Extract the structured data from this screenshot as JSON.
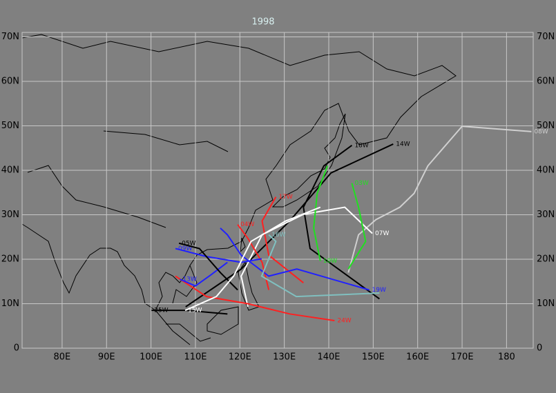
{
  "chart_data": {
    "type": "map",
    "title": "1998",
    "xlim": [
      71,
      186
    ],
    "ylim": [
      0,
      71
    ],
    "grid": true,
    "xticks": [
      {
        "value": 80,
        "label": "80E"
      },
      {
        "value": 90,
        "label": "90E"
      },
      {
        "value": 100,
        "label": "100E"
      },
      {
        "value": 110,
        "label": "110E"
      },
      {
        "value": 120,
        "label": "120E"
      },
      {
        "value": 130,
        "label": "130E"
      },
      {
        "value": 140,
        "label": "140E"
      },
      {
        "value": 150,
        "label": "150E"
      },
      {
        "value": 160,
        "label": "160E"
      },
      {
        "value": 170,
        "label": "170E"
      },
      180
    ],
    "yticks": [
      0,
      {
        "value": 10,
        "label": "10N"
      },
      {
        "value": 20,
        "label": "20N"
      },
      {
        "value": 30,
        "label": "30N"
      },
      {
        "value": 40,
        "label": "40N"
      },
      {
        "value": 50,
        "label": "50N"
      },
      {
        "value": 60,
        "label": "60N"
      },
      {
        "value": 70,
        "label": "70N"
      }
    ],
    "series": [
      {
        "name": "08W",
        "color": "#d0d0d0",
        "x": [
          144.4,
          146.7,
          150.6,
          156.0,
          159.2,
          162.3,
          170.0,
          185.6
        ],
        "values": [
          17.0,
          25.5,
          28.9,
          31.7,
          34.8,
          41.0,
          49.9,
          48.7
        ]
      },
      {
        "name": "18W",
        "color": "#000000",
        "x": [
          151.4,
          135.8,
          134.3,
          138.9,
          145.2
        ],
        "values": [
          11.1,
          22.4,
          31.7,
          41.0,
          45.6
        ]
      },
      {
        "name": "14W",
        "color": "#000000",
        "x": [
          107.8,
          120.3,
          131.2,
          140.5,
          154.5
        ],
        "values": [
          9.3,
          17.8,
          28.6,
          39.4,
          45.9
        ]
      },
      {
        "name": "07W",
        "color": "#ffffff",
        "x": [
          121.8,
          120.3,
          125.0,
          134.3,
          143.6,
          149.8
        ],
        "values": [
          9.3,
          16.2,
          25.5,
          30.1,
          31.7,
          25.8
        ]
      },
      {
        "name": "03W",
        "color": "#20e020",
        "x": [
          144.4,
          148.3,
          146.7,
          145.2
        ],
        "values": [
          17.8,
          24.0,
          31.7,
          37.1
        ]
      },
      {
        "name": "10W",
        "color": "#20e020",
        "x": [
          139.7,
          137.4,
          136.6,
          138.1
        ],
        "values": [
          41.0,
          34.8,
          27.0,
          19.6
        ]
      },
      {
        "name": "24W",
        "color": "#ff2020",
        "x": [
          105.5,
          112.5,
          121.8,
          131.2,
          141.3
        ],
        "values": [
          16.2,
          11.6,
          10.0,
          7.7,
          6.2
        ]
      },
      {
        "name": "04W",
        "color": "#ff2020",
        "x": [
          126.5,
          125.0,
          121.8,
          119.5
        ],
        "values": [
          13.1,
          19.3,
          24.7,
          27.8
        ]
      },
      {
        "name": "17W",
        "color": "#ff2020",
        "x": [
          134.3,
          126.5,
          125.0,
          128.1
        ],
        "values": [
          14.7,
          20.9,
          28.6,
          34.0
        ]
      },
      {
        "name": "19W",
        "color": "#2020ff",
        "x": [
          115.6,
          117.2,
          120.3,
          126.5,
          132.8,
          149.1
        ],
        "values": [
          27.0,
          25.5,
          20.9,
          16.2,
          17.8,
          13.1
        ]
      },
      {
        "name": "09W",
        "color": "#2020ff",
        "x": [
          124.9,
          120.3,
          112.5,
          105.5
        ],
        "values": [
          20.1,
          19.3,
          20.6,
          22.4
        ]
      },
      {
        "name": "13W",
        "color": "#2020ff",
        "x": [
          117.2,
          113.5,
          110.0,
          106.5
        ],
        "values": [
          19.3,
          16.5,
          14.0,
          15.5
        ]
      },
      {
        "name": "25W",
        "color": "#000000",
        "x": [
          117.2,
          107.8,
          100.1
        ],
        "values": [
          7.7,
          8.5,
          8.5
        ]
      },
      {
        "name": "05W",
        "color": "#000000",
        "x": [
          119.5,
          115.6,
          110.9,
          106.3
        ],
        "values": [
          13.1,
          17.0,
          22.4,
          23.6
        ]
      },
      {
        "name": "16W",
        "color": "#80c0c0",
        "x": [
          151.4,
          132.7,
          124.9,
          128.1,
          126.5
        ],
        "values": [
          12.4,
          11.6,
          16.2,
          24.0,
          25.5
        ]
      },
      {
        "name": "15W",
        "color": "#ffffff",
        "x": [
          138.1,
          130.3,
          122.5,
          118.6,
          114.7,
          107.7
        ],
        "values": [
          31.7,
          28.6,
          24.0,
          16.2,
          11.6,
          8.5
        ]
      }
    ]
  }
}
